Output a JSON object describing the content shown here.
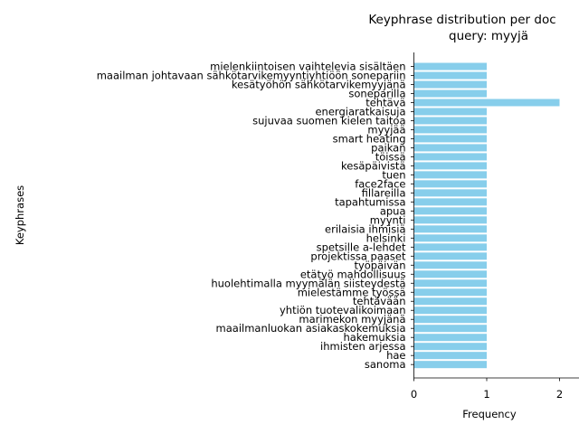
{
  "chart_data": {
    "type": "bar",
    "orientation": "horizontal",
    "title_line1": "Keyphrase distribution per doc",
    "title_line2": "query: myyjä",
    "xlabel": "Frequency",
    "ylabel": "Keyphrases",
    "xlim": [
      0,
      2.1
    ],
    "xticks": [
      0,
      1,
      2
    ],
    "bar_color": "#87CEEB",
    "grid": false,
    "categories": [
      "mielenkiintoisen vaihtelevia sisältäen",
      "maailman johtavaan sähkötarvikemyyntiyhtiöön sonepariin",
      "kesätyöhön sähkötarvikemyyjänä",
      "soneparilla",
      "tehtävä",
      "energiaratkaisuja",
      "sujuvaa suomen kielen taitoa",
      "myyjää",
      "smart heating",
      "paikan",
      "töissä",
      "kesäpäivistä",
      "tuen",
      "face2face",
      "fillareilla",
      "tapahtumissa",
      "apua",
      "myynti",
      "erilaisia ihmisiä",
      "helsinki",
      "spetsille a-lehdet",
      "projektissa paaset",
      "työpäivän",
      "etätyö mahdollisuus",
      "huolehtimalla myymälän siisteydestä",
      "mielestämme työssä",
      "tehtävään",
      "yhtiön tuotevalikoimaan",
      "marimekon myyjänä",
      "maailmanluokan asiakaskokemuksia",
      "hakemuksia",
      "ihmisten arjessa",
      "hae",
      "sanoma"
    ],
    "values": [
      1,
      1,
      1,
      1,
      2,
      1,
      1,
      1,
      1,
      1,
      1,
      1,
      1,
      1,
      1,
      1,
      1,
      1,
      1,
      1,
      1,
      1,
      1,
      1,
      1,
      1,
      1,
      1,
      1,
      1,
      1,
      1,
      1,
      1
    ]
  }
}
